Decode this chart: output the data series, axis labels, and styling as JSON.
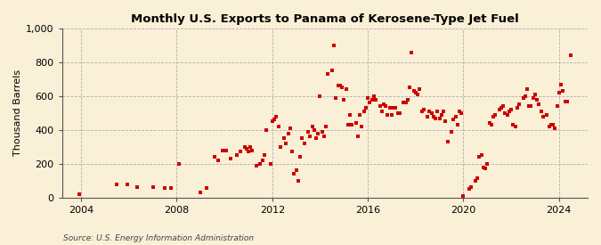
{
  "title": "Monthly U.S. Exports to Panama of Kerosene-Type Jet Fuel",
  "ylabel": "Thousand Barrels",
  "source": "Source: U.S. Energy Information Administration",
  "background_color": "#faf0d7",
  "marker_color": "#cc0000",
  "xlim": [
    2003.2,
    2025.2
  ],
  "ylim": [
    0,
    1000
  ],
  "yticks": [
    0,
    200,
    400,
    600,
    800,
    1000
  ],
  "ytick_labels": [
    "0",
    "200",
    "400",
    "600",
    "800",
    "1,000"
  ],
  "xticks": [
    2004,
    2008,
    2012,
    2016,
    2020,
    2024
  ],
  "data": [
    [
      2003.917,
      20
    ],
    [
      2005.5,
      75
    ],
    [
      2005.917,
      75
    ],
    [
      2006.333,
      60
    ],
    [
      2007.0,
      60
    ],
    [
      2007.5,
      55
    ],
    [
      2007.75,
      55
    ],
    [
      2008.083,
      200
    ],
    [
      2009.0,
      30
    ],
    [
      2009.25,
      55
    ],
    [
      2009.583,
      240
    ],
    [
      2009.75,
      220
    ],
    [
      2009.917,
      280
    ],
    [
      2010.083,
      280
    ],
    [
      2010.25,
      230
    ],
    [
      2010.5,
      250
    ],
    [
      2010.667,
      270
    ],
    [
      2010.833,
      300
    ],
    [
      2010.917,
      290
    ],
    [
      2011.0,
      270
    ],
    [
      2011.083,
      300
    ],
    [
      2011.167,
      280
    ],
    [
      2011.333,
      190
    ],
    [
      2011.5,
      200
    ],
    [
      2011.583,
      220
    ],
    [
      2011.667,
      250
    ],
    [
      2011.75,
      400
    ],
    [
      2011.917,
      200
    ],
    [
      2012.0,
      450
    ],
    [
      2012.083,
      460
    ],
    [
      2012.167,
      480
    ],
    [
      2012.25,
      420
    ],
    [
      2012.333,
      300
    ],
    [
      2012.5,
      350
    ],
    [
      2012.583,
      320
    ],
    [
      2012.667,
      380
    ],
    [
      2012.75,
      410
    ],
    [
      2012.833,
      270
    ],
    [
      2012.917,
      140
    ],
    [
      2013.0,
      160
    ],
    [
      2013.083,
      100
    ],
    [
      2013.167,
      240
    ],
    [
      2013.25,
      350
    ],
    [
      2013.333,
      320
    ],
    [
      2013.5,
      390
    ],
    [
      2013.583,
      360
    ],
    [
      2013.667,
      420
    ],
    [
      2013.75,
      400
    ],
    [
      2013.833,
      350
    ],
    [
      2013.917,
      380
    ],
    [
      2014.0,
      600
    ],
    [
      2014.083,
      390
    ],
    [
      2014.167,
      360
    ],
    [
      2014.25,
      420
    ],
    [
      2014.333,
      730
    ],
    [
      2014.5,
      750
    ],
    [
      2014.583,
      900
    ],
    [
      2014.667,
      590
    ],
    [
      2014.75,
      660
    ],
    [
      2014.833,
      660
    ],
    [
      2014.917,
      650
    ],
    [
      2015.0,
      580
    ],
    [
      2015.083,
      640
    ],
    [
      2015.167,
      430
    ],
    [
      2015.25,
      490
    ],
    [
      2015.333,
      430
    ],
    [
      2015.5,
      440
    ],
    [
      2015.583,
      360
    ],
    [
      2015.667,
      490
    ],
    [
      2015.75,
      420
    ],
    [
      2015.833,
      510
    ],
    [
      2015.917,
      530
    ],
    [
      2016.0,
      590
    ],
    [
      2016.083,
      560
    ],
    [
      2016.167,
      580
    ],
    [
      2016.25,
      600
    ],
    [
      2016.333,
      580
    ],
    [
      2016.5,
      540
    ],
    [
      2016.583,
      510
    ],
    [
      2016.667,
      550
    ],
    [
      2016.75,
      540
    ],
    [
      2016.833,
      490
    ],
    [
      2016.917,
      530
    ],
    [
      2017.0,
      490
    ],
    [
      2017.083,
      530
    ],
    [
      2017.167,
      530
    ],
    [
      2017.25,
      500
    ],
    [
      2017.333,
      500
    ],
    [
      2017.5,
      560
    ],
    [
      2017.583,
      560
    ],
    [
      2017.667,
      580
    ],
    [
      2017.75,
      650
    ],
    [
      2017.833,
      860
    ],
    [
      2017.917,
      630
    ],
    [
      2018.0,
      620
    ],
    [
      2018.083,
      610
    ],
    [
      2018.167,
      640
    ],
    [
      2018.25,
      510
    ],
    [
      2018.333,
      520
    ],
    [
      2018.5,
      480
    ],
    [
      2018.583,
      510
    ],
    [
      2018.667,
      500
    ],
    [
      2018.75,
      480
    ],
    [
      2018.833,
      470
    ],
    [
      2018.917,
      510
    ],
    [
      2019.0,
      470
    ],
    [
      2019.083,
      490
    ],
    [
      2019.167,
      510
    ],
    [
      2019.25,
      450
    ],
    [
      2019.333,
      330
    ],
    [
      2019.5,
      390
    ],
    [
      2019.583,
      460
    ],
    [
      2019.667,
      480
    ],
    [
      2019.75,
      430
    ],
    [
      2019.833,
      510
    ],
    [
      2019.917,
      500
    ],
    [
      2020.0,
      10
    ],
    [
      2020.25,
      50
    ],
    [
      2020.333,
      60
    ],
    [
      2020.5,
      100
    ],
    [
      2020.583,
      115
    ],
    [
      2020.667,
      240
    ],
    [
      2020.75,
      250
    ],
    [
      2020.833,
      180
    ],
    [
      2020.917,
      175
    ],
    [
      2021.0,
      200
    ],
    [
      2021.083,
      440
    ],
    [
      2021.167,
      430
    ],
    [
      2021.25,
      480
    ],
    [
      2021.333,
      490
    ],
    [
      2021.5,
      520
    ],
    [
      2021.583,
      530
    ],
    [
      2021.667,
      540
    ],
    [
      2021.75,
      500
    ],
    [
      2021.833,
      490
    ],
    [
      2021.917,
      510
    ],
    [
      2022.0,
      520
    ],
    [
      2022.083,
      430
    ],
    [
      2022.167,
      420
    ],
    [
      2022.25,
      530
    ],
    [
      2022.333,
      550
    ],
    [
      2022.5,
      590
    ],
    [
      2022.583,
      600
    ],
    [
      2022.667,
      640
    ],
    [
      2022.75,
      540
    ],
    [
      2022.833,
      540
    ],
    [
      2022.917,
      590
    ],
    [
      2023.0,
      610
    ],
    [
      2023.083,
      580
    ],
    [
      2023.167,
      550
    ],
    [
      2023.25,
      510
    ],
    [
      2023.333,
      480
    ],
    [
      2023.5,
      490
    ],
    [
      2023.583,
      420
    ],
    [
      2023.667,
      430
    ],
    [
      2023.75,
      430
    ],
    [
      2023.833,
      410
    ],
    [
      2023.917,
      540
    ],
    [
      2024.0,
      620
    ],
    [
      2024.083,
      670
    ],
    [
      2024.167,
      630
    ],
    [
      2024.25,
      570
    ],
    [
      2024.333,
      570
    ],
    [
      2024.5,
      840
    ]
  ]
}
